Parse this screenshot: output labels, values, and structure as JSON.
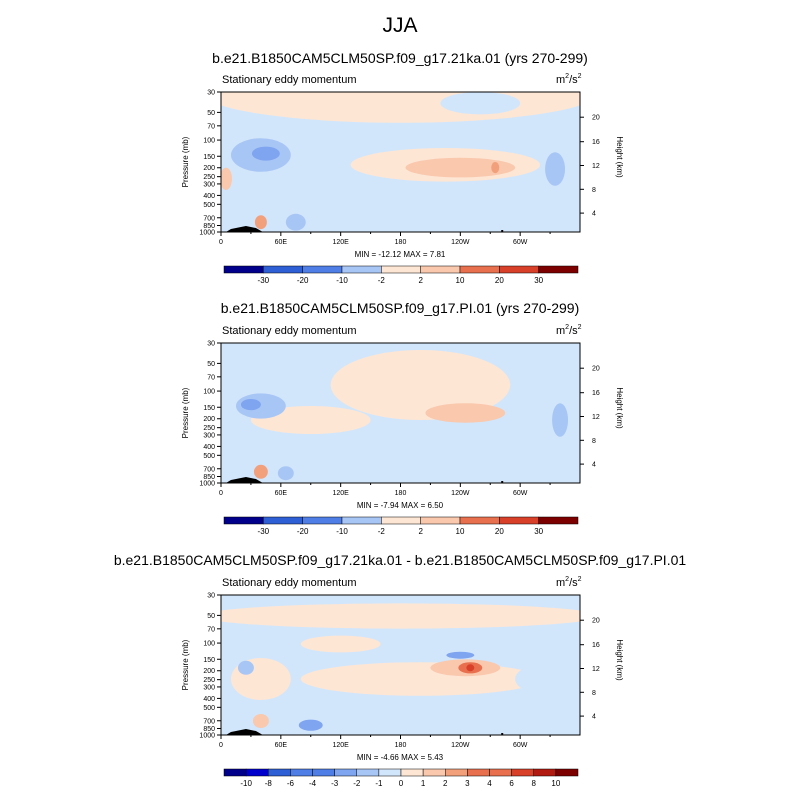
{
  "main_title": "JJA",
  "colors": {
    "scale": [
      "#00008b",
      "#0000cd",
      "#2f5fd4",
      "#4f7fe6",
      "#7fa4f0",
      "#a8c6f5",
      "#d2e6fb",
      "#fde6d4",
      "#f9c8ad",
      "#f2a07c",
      "#e8704e",
      "#d8402a",
      "#b01a10",
      "#7d0000"
    ]
  },
  "chart_data": [
    {
      "type": "contour",
      "title": "b.e21.B1850CAM5CLM50SP.f09_g17.21ka.01 (yrs 270-299)",
      "left_string": "Stationary eddy momentum",
      "units_base": "m",
      "units_exp": "2",
      "units_sep": "/s",
      "units_exp2": "2",
      "ylabel": "Pressure (mb)",
      "ylabel_right": "Height (km)",
      "pressure_ticks": [
        "30",
        "50",
        "70",
        "100",
        "150",
        "200",
        "250",
        "300",
        "400",
        "500",
        "700",
        "850",
        "1000"
      ],
      "height_ticks": [
        "20",
        "16",
        "12",
        "8",
        "4"
      ],
      "lon_ticks": [
        "0",
        "60E",
        "120E",
        "180",
        "120W",
        "60W"
      ],
      "stats_text": "MIN = -12.12  MAX =   7.81",
      "min": -12.12,
      "max": 7.81,
      "levels": [
        "-30",
        "-20",
        "-10",
        "-2",
        "2",
        "10",
        "20",
        "30"
      ]
    },
    {
      "type": "contour",
      "title": "b.e21.B1850CAM5CLM50SP.f09_g17.PI.01 (yrs 270-299)",
      "left_string": "Stationary eddy momentum",
      "units_base": "m",
      "units_exp": "2",
      "units_sep": "/s",
      "units_exp2": "2",
      "ylabel": "Pressure (mb)",
      "ylabel_right": "Height (km)",
      "pressure_ticks": [
        "30",
        "50",
        "70",
        "100",
        "150",
        "200",
        "250",
        "300",
        "400",
        "500",
        "700",
        "850",
        "1000"
      ],
      "height_ticks": [
        "20",
        "16",
        "12",
        "8",
        "4"
      ],
      "lon_ticks": [
        "0",
        "60E",
        "120E",
        "180",
        "120W",
        "60W"
      ],
      "stats_text": "MIN =  -7.94  MAX =   6.50",
      "min": -7.94,
      "max": 6.5,
      "levels": [
        "-30",
        "-20",
        "-10",
        "-2",
        "2",
        "10",
        "20",
        "30"
      ]
    },
    {
      "type": "contour",
      "title": "b.e21.B1850CAM5CLM50SP.f09_g17.21ka.01 - b.e21.B1850CAM5CLM50SP.f09_g17.PI.01",
      "left_string": "Stationary eddy momentum",
      "units_base": "m",
      "units_exp": "2",
      "units_sep": "/s",
      "units_exp2": "2",
      "ylabel": "Pressure (mb)",
      "ylabel_right": "Height (km)",
      "pressure_ticks": [
        "30",
        "50",
        "70",
        "100",
        "150",
        "200",
        "250",
        "300",
        "400",
        "500",
        "700",
        "850",
        "1000"
      ],
      "height_ticks": [
        "20",
        "16",
        "12",
        "8",
        "4"
      ],
      "lon_ticks": [
        "0",
        "60E",
        "120E",
        "180",
        "120W",
        "60W"
      ],
      "stats_text": "MIN =  -4.66  MAX =   5.43",
      "min": -4.66,
      "max": 5.43,
      "levels": [
        "-10",
        "-8",
        "-6",
        "-4",
        "-3",
        "-2",
        "-1",
        "0",
        "1",
        "2",
        "3",
        "4",
        "6",
        "8",
        "10"
      ]
    }
  ]
}
